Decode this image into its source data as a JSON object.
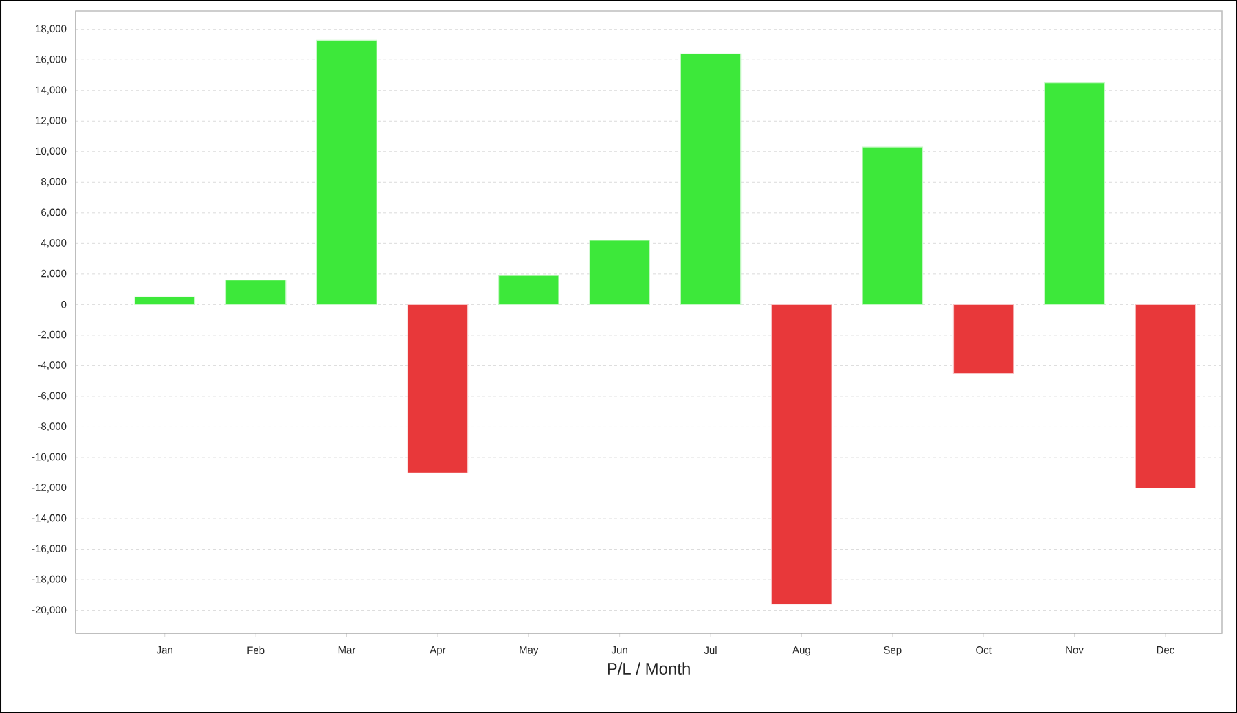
{
  "chart_data": {
    "type": "bar",
    "xlabel": "P/L / Month",
    "categories": [
      "Jan",
      "Feb",
      "Mar",
      "Apr",
      "May",
      "Jun",
      "Jul",
      "Aug",
      "Sep",
      "Oct",
      "Nov",
      "Dec"
    ],
    "values": [
      500,
      1600,
      17300,
      -11000,
      1900,
      4200,
      16400,
      -19600,
      10300,
      -4500,
      14500,
      -12000
    ],
    "colors": [
      "#3de83a",
      "#3de83a",
      "#3de83a",
      "#e8383a",
      "#3de83a",
      "#3de83a",
      "#3de83a",
      "#e8383a",
      "#3de83a",
      "#e8383a",
      "#3de83a",
      "#e8383a"
    ],
    "ylim": [
      -21500,
      19200
    ],
    "yticks": [
      {
        "value": -20000,
        "label": "-20,000"
      },
      {
        "value": -18000,
        "label": "-18,000"
      },
      {
        "value": -16000,
        "label": "-16,000"
      },
      {
        "value": -14000,
        "label": "-14,000"
      },
      {
        "value": -12000,
        "label": "-12,000"
      },
      {
        "value": -10000,
        "label": "-10,000"
      },
      {
        "value": -8000,
        "label": "-8,000"
      },
      {
        "value": -6000,
        "label": "-6,000"
      },
      {
        "value": -4000,
        "label": "-4,000"
      },
      {
        "value": -2000,
        "label": "-2,000"
      },
      0,
      {
        "value": 2000,
        "label": "2,000"
      },
      {
        "value": 4000,
        "label": "4,000"
      },
      {
        "value": 6000,
        "label": "6,000"
      },
      {
        "value": 8000,
        "label": "8,000"
      },
      {
        "value": 10000,
        "label": "10,000"
      },
      {
        "value": 12000,
        "label": "12,000"
      },
      {
        "value": 14000,
        "label": "14,000"
      },
      {
        "value": 16000,
        "label": "16,000"
      },
      {
        "value": 18000,
        "label": "18,000"
      }
    ],
    "grid": "y"
  }
}
